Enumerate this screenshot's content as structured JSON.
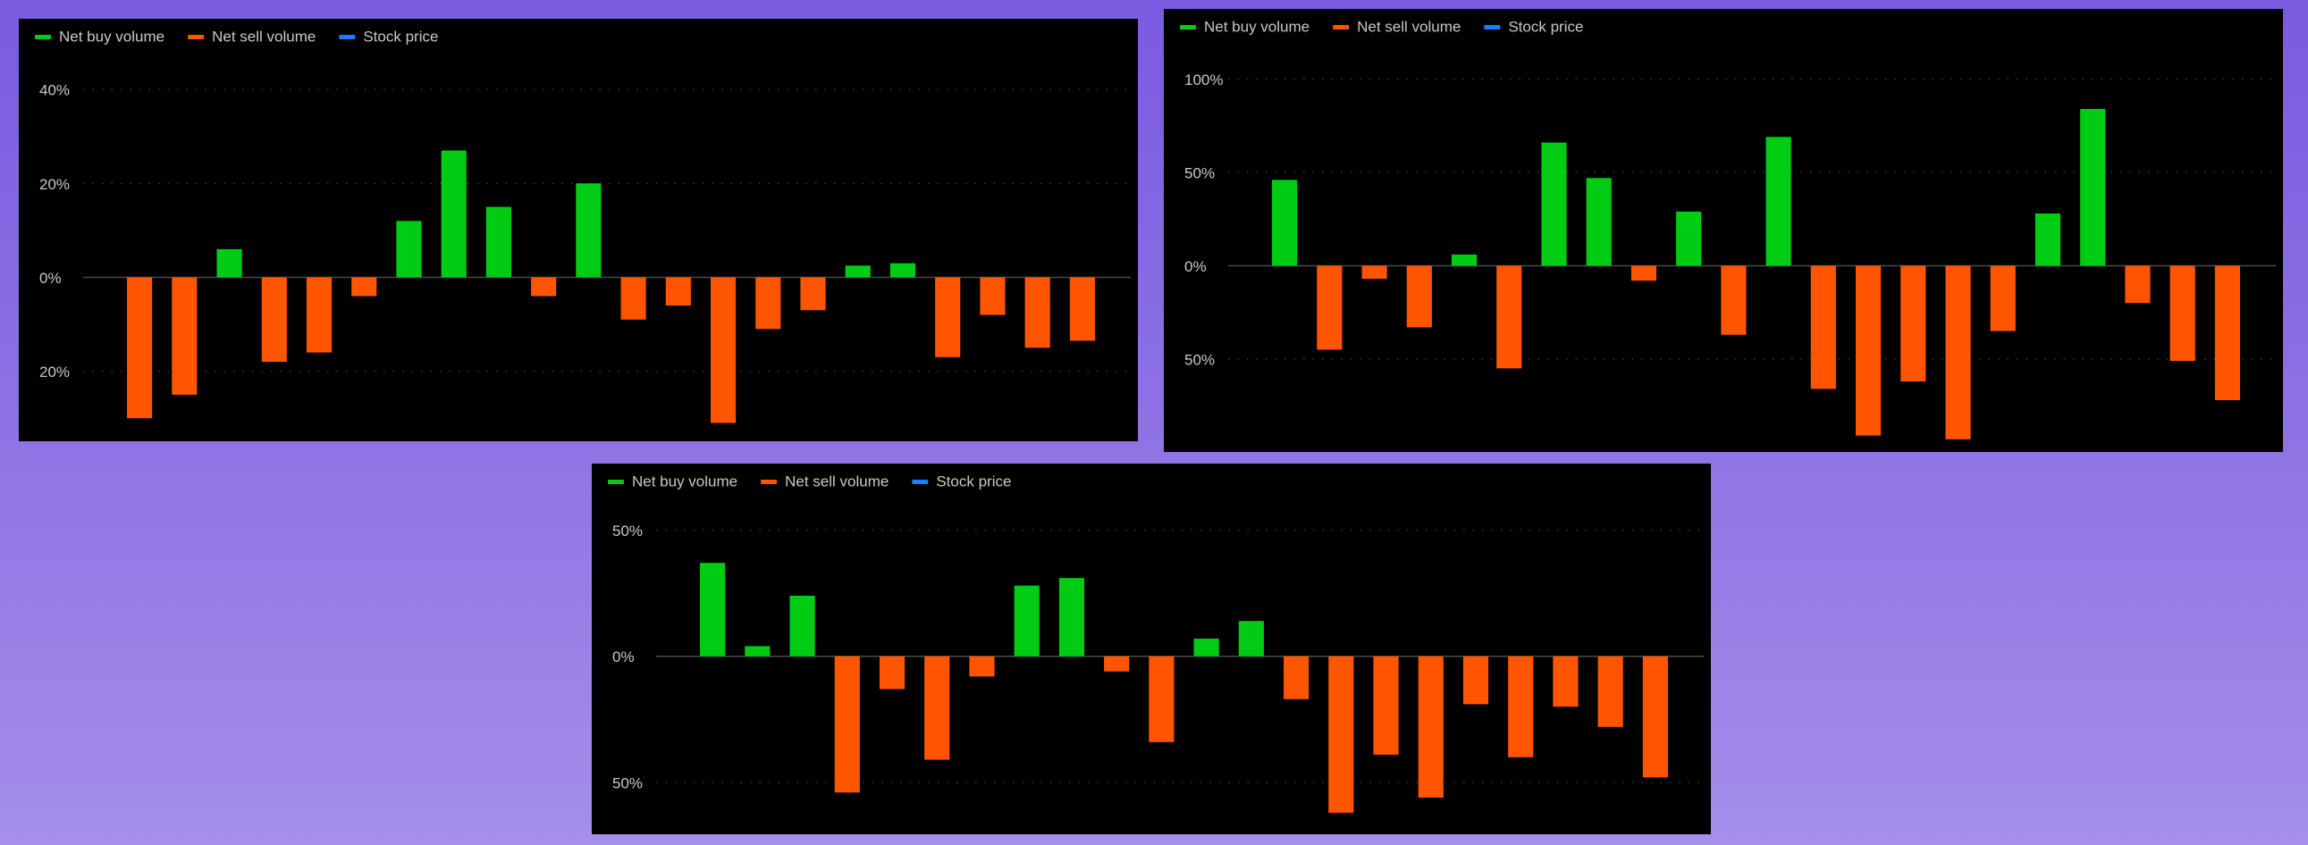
{
  "chart_data": [
    {
      "type": "bar",
      "grid": true,
      "legend": "top-left",
      "categories": [
        null,
        null,
        null,
        null,
        null,
        null,
        null,
        null,
        null,
        null,
        null,
        null,
        null,
        null,
        null,
        null,
        null,
        null,
        null,
        null,
        null,
        null
      ],
      "series": [
        {
          "name": "Net buy volume",
          "color": "#00cc14",
          "values": [
            null,
            null,
            6,
            null,
            null,
            null,
            12,
            27,
            15,
            null,
            20,
            null,
            null,
            null,
            null,
            null,
            2.5,
            3,
            null,
            null,
            null,
            null
          ]
        },
        {
          "name": "Net sell volume",
          "color": "#ff5500",
          "values": [
            -30,
            -25,
            null,
            -18,
            -16,
            -4,
            null,
            null,
            null,
            -4,
            null,
            -9,
            -6,
            -31,
            -11,
            -7,
            null,
            null,
            -17,
            -8,
            -15,
            -13.5
          ]
        },
        {
          "name": "Stock price",
          "color": "#1a7fff",
          "kind": "line",
          "values": [
            null,
            null,
            null,
            null,
            null,
            null,
            null,
            null,
            null,
            null,
            null,
            null,
            null,
            null,
            null,
            null,
            null,
            null,
            null,
            null,
            null,
            null
          ]
        }
      ],
      "ylim": [
        -33,
        42.5
      ],
      "yticks": [
        {
          "value": 40,
          "label": "40%"
        },
        {
          "value": 20,
          "label": "20%"
        },
        {
          "value": 0,
          "label": "0%"
        },
        {
          "value": -20,
          "label": "20%"
        }
      ]
    },
    {
      "type": "bar",
      "grid": true,
      "legend": "top-left",
      "categories": [
        null,
        null,
        null,
        null,
        null,
        null,
        null,
        null,
        null,
        null,
        null,
        null,
        null,
        null,
        null,
        null,
        null,
        null,
        null,
        null,
        null,
        null
      ],
      "series": [
        {
          "name": "Net buy volume",
          "color": "#00cc14",
          "values": [
            46,
            null,
            null,
            null,
            6,
            null,
            66,
            47,
            null,
            29,
            null,
            69,
            null,
            null,
            null,
            null,
            null,
            28,
            84,
            null,
            null,
            null
          ]
        },
        {
          "name": "Net sell volume",
          "color": "#ff5500",
          "values": [
            null,
            -45,
            -7,
            -33,
            null,
            -55,
            null,
            null,
            -8,
            null,
            -37,
            null,
            -66,
            -91,
            -62,
            -93,
            -35,
            null,
            null,
            -20,
            -51,
            -72
          ]
        },
        {
          "name": "Stock price",
          "color": "#1a7fff",
          "kind": "line",
          "values": [
            null,
            null,
            null,
            null,
            null,
            null,
            null,
            null,
            null,
            null,
            null,
            null,
            null,
            null,
            null,
            null,
            null,
            null,
            null,
            null,
            null,
            null
          ]
        }
      ],
      "ylim": [
        -95,
        106
      ],
      "yticks": [
        {
          "value": 100,
          "label": "100%"
        },
        {
          "value": 50,
          "label": "50%"
        },
        {
          "value": 0,
          "label": "0%"
        },
        {
          "value": -50,
          "label": "50%"
        }
      ]
    },
    {
      "type": "bar",
      "grid": true,
      "legend": "top-left",
      "categories": [
        null,
        null,
        null,
        null,
        null,
        null,
        null,
        null,
        null,
        null,
        null,
        null,
        null,
        null,
        null,
        null,
        null,
        null,
        null,
        null,
        null,
        null
      ],
      "series": [
        {
          "name": "Net buy volume",
          "color": "#00cc14",
          "values": [
            37,
            4,
            24,
            null,
            null,
            null,
            null,
            28,
            31,
            null,
            null,
            7,
            14,
            null,
            null,
            null,
            null,
            null,
            null,
            null,
            null,
            null
          ]
        },
        {
          "name": "Net sell volume",
          "color": "#ff5500",
          "values": [
            null,
            null,
            null,
            -54,
            -13,
            -41,
            -8,
            null,
            null,
            -6,
            -34,
            null,
            null,
            -17,
            -62,
            -39,
            -56,
            -19,
            -40,
            -20,
            -28,
            -48
          ]
        },
        {
          "name": "Stock price",
          "color": "#1a7fff",
          "kind": "line",
          "values": [
            null,
            null,
            null,
            null,
            null,
            null,
            null,
            null,
            null,
            null,
            null,
            null,
            null,
            null,
            null,
            null,
            null,
            null,
            null,
            null,
            null,
            null
          ]
        }
      ],
      "ylim": [
        -67,
        53
      ],
      "yticks": [
        {
          "value": 50,
          "label": "50%"
        },
        {
          "value": 0,
          "label": "0%"
        },
        {
          "value": -50,
          "label": "50%"
        }
      ]
    }
  ]
}
